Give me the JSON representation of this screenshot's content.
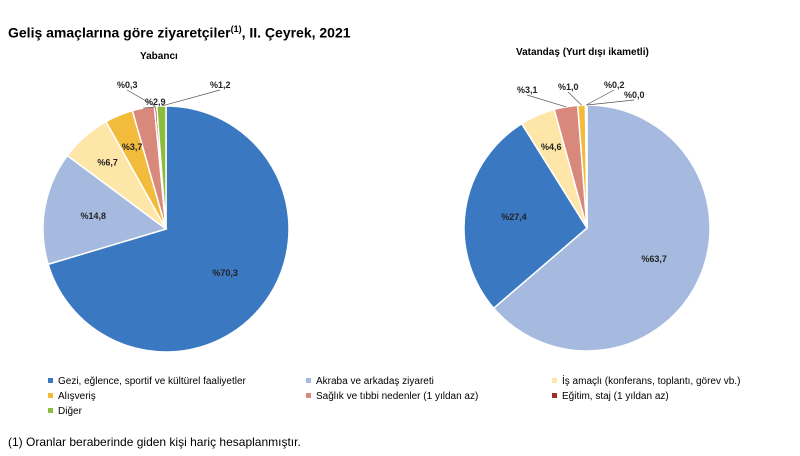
{
  "header": {
    "title_main": "Geliş amaçlarına göre ziyaretçiler",
    "title_sup": "(1)",
    "title_rest": ", II. Çeyrek, 2021"
  },
  "footnote": "(1) Oranlar beraberinde giden kişi hariç hesaplanmıştır.",
  "legend": [
    {
      "label": "Gezi, eğlence, sportif ve kültürel faaliyetler",
      "color": "#3b78c2"
    },
    {
      "label": "Akraba ve arkadaş ziyareti",
      "color": "#a6badf"
    },
    {
      "label": "İş amaçlı (konferans, toplantı, görev vb.)",
      "color": "#fde6a8"
    },
    {
      "label": "Alışveriş",
      "color": "#f2bb3b"
    },
    {
      "label": "Sağlık ve tıbbi nedenler (1 yıldan az)",
      "color": "#d9897b"
    },
    {
      "label": "Eğitim, staj (1 yıldan az)",
      "color": "#a32b26"
    },
    {
      "label": "Diğer",
      "color": "#8dbb3b"
    }
  ],
  "chart_data": [
    {
      "type": "pie",
      "title": "Yabancı",
      "categories": [
        "Gezi, eğlence, sportif ve kültürel faaliyetler",
        "Akraba ve arkadaş ziyareti",
        "İş amaçlı (konferans, toplantı, görev vb.)",
        "Alışveriş",
        "Sağlık ve tıbbi nedenler (1 yıldan az)",
        "Eğitim, staj (1 yıldan az)",
        "Diğer"
      ],
      "values": [
        70.3,
        14.8,
        6.7,
        3.7,
        2.9,
        0.3,
        1.2
      ],
      "labels": [
        "%70,3",
        "%14,8",
        "%6,7",
        "%3,7",
        "%2,9",
        "%0,3",
        "%1,2"
      ],
      "colors": [
        "#3b78c2",
        "#a6badf",
        "#fde6a8",
        "#f2bb3b",
        "#d9897b",
        "#a32b26",
        "#8dbb3b"
      ]
    },
    {
      "type": "pie",
      "title": "Vatandaş (Yurt dışı ikametli)",
      "categories": [
        "Akraba ve arkadaş ziyareti",
        "Gezi, eğlence, sportif ve kültürel faaliyetler",
        "İş amaçlı (konferans, toplantı, görev vb.)",
        "Sağlık ve tıbbi nedenler (1 yıldan az)",
        "Alışveriş",
        "Eğitim, staj (1 yıldan az)",
        "Diğer"
      ],
      "values": [
        63.7,
        27.4,
        4.6,
        3.1,
        1.0,
        0.2,
        0.0
      ],
      "labels": [
        "%63,7",
        "%27,4",
        "%4,6",
        "%3,1",
        "%1,0",
        "%0,2",
        "%0,0"
      ],
      "colors": [
        "#a6badf",
        "#3b78c2",
        "#fde6a8",
        "#d9897b",
        "#f2bb3b",
        "#a32b26",
        "#8dbb3b"
      ]
    }
  ]
}
